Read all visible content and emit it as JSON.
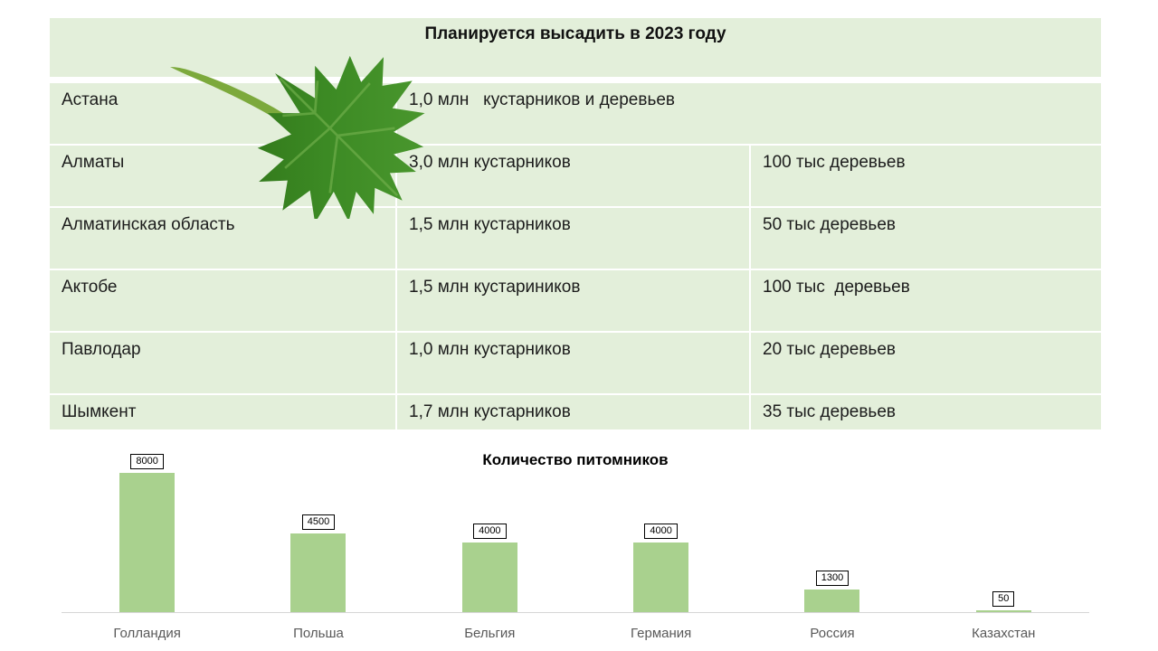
{
  "table": {
    "title": "Планируется высадить в 2023 году",
    "rows": [
      {
        "city": "Астана",
        "col2": "1,0 млн   кустарников и деревьев",
        "col3": ""
      },
      {
        "city": "Алматы",
        "col2": "3,0 млн кустарников",
        "col3": "100 тыс деревьев"
      },
      {
        "city": "Алматинская область",
        "col2": "1,5 млн кустарников",
        "col3": "50 тыс деревьев"
      },
      {
        "city": "Актобе",
        "col2": "1,5 млн кустариников",
        "col3": "100 тыс  деревьев"
      },
      {
        "city": "Павлодар",
        "col2": "1,0 млн кустарников",
        "col3": "20 тыс деревьев"
      },
      {
        "city": "Шымкент",
        "col2": "1,7 млн кустарников",
        "col3": "35 тыс деревьев"
      }
    ]
  },
  "chart_data": {
    "type": "bar",
    "title": "Количество питомников",
    "categories": [
      "Голландия",
      "Польша",
      "Бельгия",
      "Германия",
      "Россия",
      "Казахстан"
    ],
    "values": [
      8000,
      4500,
      4000,
      4000,
      1300,
      50
    ],
    "ylim": [
      0,
      8000
    ],
    "xlabel": "",
    "ylabel": "",
    "grid": false,
    "legend": "none",
    "data_labels": true
  },
  "colors": {
    "cell_bg": "#e3efda",
    "bar_fill": "#a9d18e",
    "axis_line": "#d6d6d6",
    "category_text": "#595959",
    "leaf_dark": "#2e7117",
    "leaf_light": "#5aa637"
  }
}
